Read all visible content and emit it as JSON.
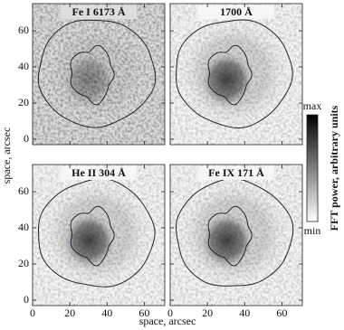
{
  "chart_data": [
    {
      "type": "image",
      "title": "Fe I 6173 Å",
      "xlim": [
        0,
        71
      ],
      "ylim": [
        -3,
        75
      ],
      "xticks": [
        0,
        20,
        40,
        60
      ],
      "yticks": [
        0,
        20,
        40,
        60
      ]
    },
    {
      "type": "image",
      "title": "1700 Å",
      "xlim": [
        0,
        71
      ],
      "ylim": [
        -3,
        75
      ],
      "xticks": [
        0,
        20,
        40,
        60
      ],
      "yticks": [
        0,
        20,
        40,
        60
      ]
    },
    {
      "type": "image",
      "title": "He II 304 Å",
      "xlim": [
        0,
        71
      ],
      "ylim": [
        -3,
        75
      ],
      "xticks": [
        0,
        20,
        40,
        60
      ],
      "yticks": [
        0,
        20,
        40,
        60
      ]
    },
    {
      "type": "image",
      "title": "Fe IX 171 Å",
      "xlim": [
        0,
        71
      ],
      "ylim": [
        -3,
        75
      ],
      "xticks": [
        0,
        20,
        40,
        60
      ],
      "yticks": [
        0,
        20,
        40,
        60
      ]
    }
  ],
  "xlabel": "space, arcsec",
  "ylabel": "space, arcsec",
  "colorbar": {
    "max": "max",
    "min": "min",
    "label": "FFT power, arbitrary units"
  }
}
